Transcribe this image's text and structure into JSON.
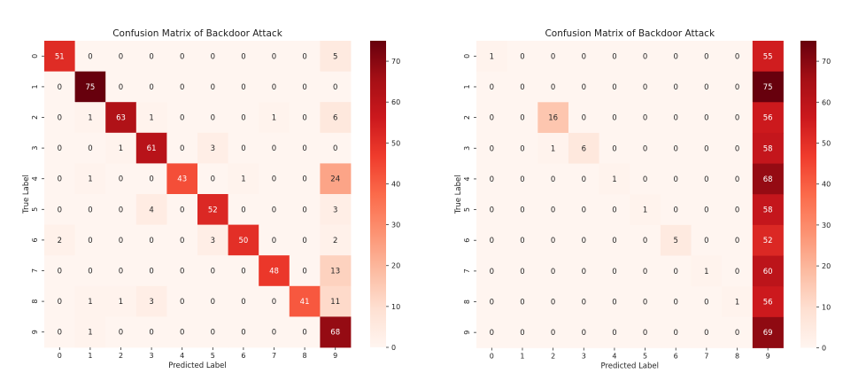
{
  "chart_data": [
    {
      "type": "heatmap",
      "title": "Confusion Matrix of Backdoor Attack",
      "xlabel": "Predicted Label",
      "ylabel": "True Label",
      "x_tick_labels": [
        "0",
        "1",
        "2",
        "3",
        "4",
        "5",
        "6",
        "7",
        "8",
        "9"
      ],
      "y_tick_labels": [
        "0",
        "1",
        "2",
        "3",
        "4",
        "5",
        "6",
        "7",
        "8",
        "9"
      ],
      "colorbar": {
        "range": [
          0,
          75
        ],
        "ticks": [
          0,
          10,
          20,
          30,
          40,
          50,
          60,
          70
        ],
        "colormap": "Reds"
      },
      "matrix": [
        [
          51,
          0,
          0,
          0,
          0,
          0,
          0,
          0,
          0,
          5
        ],
        [
          0,
          75,
          0,
          0,
          0,
          0,
          0,
          0,
          0,
          0
        ],
        [
          0,
          1,
          63,
          1,
          0,
          0,
          0,
          1,
          0,
          6
        ],
        [
          0,
          0,
          1,
          61,
          0,
          3,
          0,
          0,
          0,
          0
        ],
        [
          0,
          1,
          0,
          0,
          43,
          0,
          1,
          0,
          0,
          24
        ],
        [
          0,
          0,
          0,
          4,
          0,
          52,
          0,
          0,
          0,
          3
        ],
        [
          2,
          0,
          0,
          0,
          0,
          3,
          50,
          0,
          0,
          2
        ],
        [
          0,
          0,
          0,
          0,
          0,
          0,
          0,
          48,
          0,
          13
        ],
        [
          0,
          1,
          1,
          3,
          0,
          0,
          0,
          0,
          41,
          11
        ],
        [
          0,
          1,
          0,
          0,
          0,
          0,
          0,
          0,
          0,
          68
        ]
      ]
    },
    {
      "type": "heatmap",
      "title": "Confusion Matrix of Backdoor Attack",
      "xlabel": "Predicted Label",
      "ylabel": "True Label",
      "x_tick_labels": [
        "0",
        "1",
        "2",
        "3",
        "4",
        "5",
        "6",
        "7",
        "8",
        "9"
      ],
      "y_tick_labels": [
        "0",
        "1",
        "2",
        "3",
        "4",
        "5",
        "6",
        "7",
        "8",
        "9"
      ],
      "colorbar": {
        "range": [
          0,
          75
        ],
        "ticks": [
          0,
          10,
          20,
          30,
          40,
          50,
          60,
          70
        ],
        "colormap": "Reds"
      },
      "matrix": [
        [
          1,
          0,
          0,
          0,
          0,
          0,
          0,
          0,
          0,
          55
        ],
        [
          0,
          0,
          0,
          0,
          0,
          0,
          0,
          0,
          0,
          75
        ],
        [
          0,
          0,
          16,
          0,
          0,
          0,
          0,
          0,
          0,
          56
        ],
        [
          0,
          0,
          1,
          6,
          0,
          0,
          0,
          0,
          0,
          58
        ],
        [
          0,
          0,
          0,
          0,
          1,
          0,
          0,
          0,
          0,
          68
        ],
        [
          0,
          0,
          0,
          0,
          0,
          1,
          0,
          0,
          0,
          58
        ],
        [
          0,
          0,
          0,
          0,
          0,
          0,
          5,
          0,
          0,
          52
        ],
        [
          0,
          0,
          0,
          0,
          0,
          0,
          0,
          1,
          0,
          60
        ],
        [
          0,
          0,
          0,
          0,
          0,
          0,
          0,
          0,
          1,
          56
        ],
        [
          0,
          0,
          0,
          0,
          0,
          0,
          0,
          0,
          0,
          69
        ]
      ]
    }
  ]
}
